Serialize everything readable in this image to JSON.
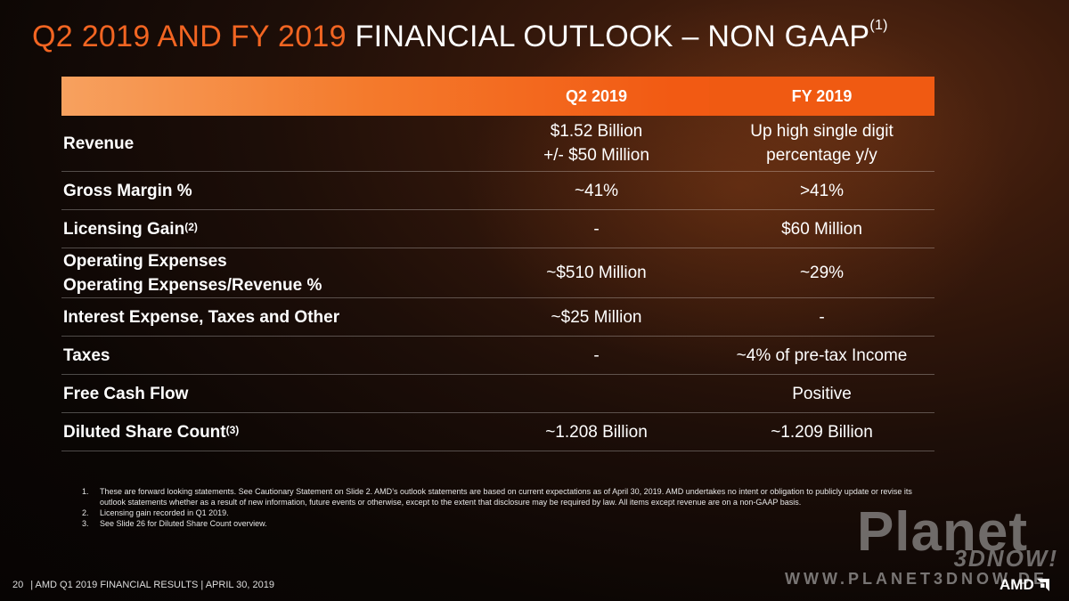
{
  "title": {
    "accent": "Q2 2019 AND FY 2019",
    "rest": " FINANCIAL OUTLOOK – NON GAAP",
    "sup": "(1)"
  },
  "table": {
    "headers": [
      "",
      "Q2 2019",
      "FY 2019"
    ],
    "rows": [
      {
        "label": "Revenue",
        "q2": [
          "$1.52 Billion",
          "+/- $50 Million"
        ],
        "fy": [
          "Up high single digit",
          "percentage y/y"
        ]
      },
      {
        "label": "Gross Margin %",
        "q2": "~41%",
        "fy": ">41%"
      },
      {
        "label": "Licensing Gain",
        "sup": "(2)",
        "q2": "-",
        "fy": "$60 Million"
      },
      {
        "label": [
          "Operating Expenses",
          "Operating Expenses/Revenue %"
        ],
        "q2": "~$510 Million",
        "fy": "~29%"
      },
      {
        "label": "Interest Expense, Taxes and Other",
        "q2": "~$25 Million",
        "fy": "-"
      },
      {
        "label": "Taxes",
        "q2": "-",
        "fy": "~4% of pre-tax Income"
      },
      {
        "label": "Free Cash Flow",
        "q2": "",
        "fy": "Positive"
      },
      {
        "label": "Diluted Share Count",
        "sup": "(3)",
        "q2": "~1.208 Billion",
        "fy": "~1.209 Billion"
      }
    ]
  },
  "footnotes": [
    {
      "num": "1.",
      "text": "These are forward looking statements.  See Cautionary Statement on Slide 2. AMD’s outlook statements are based on current expectations as of April 30, 2019.  AMD undertakes no intent or obligation to publicly update or revise its outlook statements whether as a result of new information, future events or otherwise, except to the extent that disclosure may be required by law.   All items except revenue are on a non-GAAP basis."
    },
    {
      "num": "2.",
      "text": "Licensing gain recorded in Q1 2019."
    },
    {
      "num": "3.",
      "text": "See Slide 26 for Diluted Share Count overview."
    }
  ],
  "footer": {
    "page": "20",
    "text": "|  AMD Q1 2019 FINANCIAL RESULTS | APRIL 30, 2019"
  },
  "logo": {
    "text": "AMD"
  },
  "watermark": {
    "big": "Planet",
    "sub": "3DNOW!",
    "url": "WWW.PLANET3DNOW.DE"
  },
  "colors": {
    "accent": "#f26522",
    "header_orange": "#f05a12"
  }
}
